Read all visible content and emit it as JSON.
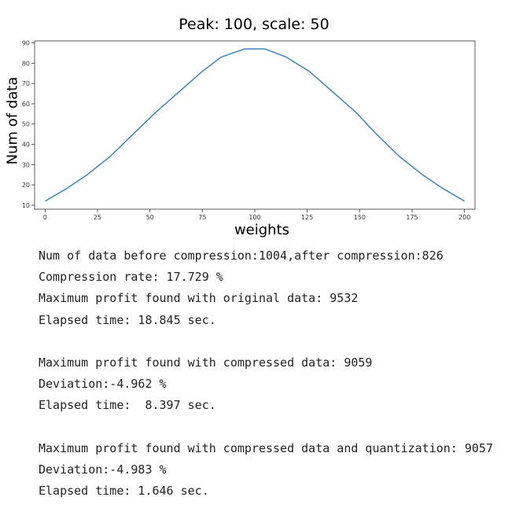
{
  "chart_data": {
    "type": "line",
    "title": "Peak: 100,  scale: 50",
    "xlabel": "weights",
    "ylabel": "Num of data",
    "xlim": [
      -5,
      205
    ],
    "ylim": [
      8,
      91
    ],
    "xticks": [
      0,
      25,
      50,
      75,
      100,
      125,
      150,
      175,
      200
    ],
    "yticks": [
      10,
      20,
      30,
      40,
      50,
      60,
      70,
      80,
      90
    ],
    "grid": false,
    "color": "#3a86c0",
    "x": [
      0,
      10,
      20,
      31,
      42,
      53,
      64,
      75,
      84,
      95,
      105,
      115,
      126,
      137,
      148,
      158,
      169,
      180,
      190,
      200
    ],
    "y": [
      12,
      18,
      25,
      34,
      45,
      56,
      66,
      76,
      83,
      87,
      87,
      83,
      76,
      66,
      56,
      45,
      34,
      25,
      18,
      12
    ]
  },
  "console": {
    "lines": [
      "Num of data before compression:1004,after compression:826",
      "Compression rate: 17.729 %",
      "Maximum profit found with original data: 9532",
      "Elapsed time: 18.845 sec.",
      "",
      "Maximum profit found with compressed data: 9059",
      "Deviation:-4.962 %",
      "Elapsed time:  8.397 sec.",
      "",
      "Maximum profit found with compressed data and quantization: 9057",
      "Deviation:-4.983 %",
      "Elapsed time: 1.646 sec."
    ]
  }
}
